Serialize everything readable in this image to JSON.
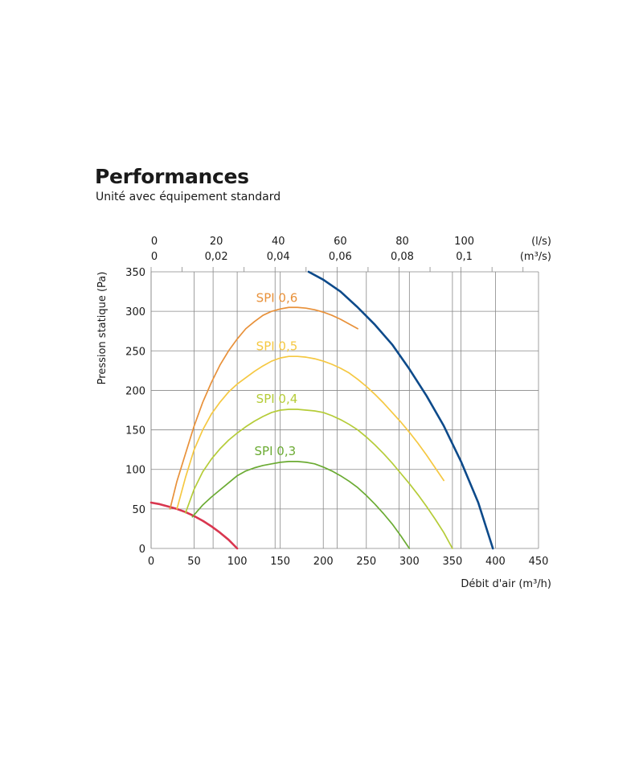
{
  "title": "Performances",
  "subtitle": "Unité avec équipement standard",
  "colors": {
    "spi06": "#e8913a",
    "spi05": "#f5c842",
    "spi04": "#b5cc38",
    "spi03": "#6bab33",
    "fan": "#0d4a8a",
    "red": "#d9364f",
    "grid": "#888888"
  },
  "chart_data": {
    "type": "line",
    "xlabel": "Débit d'air (m³/h)",
    "ylabel": "Pression statique (Pa)",
    "xlim": [
      0,
      450
    ],
    "ylim": [
      0,
      350
    ],
    "x_ticks": [
      "0",
      "50",
      "100",
      "150",
      "200",
      "250",
      "300",
      "350",
      "400",
      "450"
    ],
    "y_ticks": [
      "0",
      "50",
      "100",
      "150",
      "200",
      "250",
      "300",
      "350"
    ],
    "top_axis": {
      "ls_unit": "(l/s)",
      "m3s_unit": "(m³/s)",
      "ls_ticks": [
        {
          "value": 0,
          "label": "0"
        },
        {
          "value": 20,
          "label": "20"
        },
        {
          "value": 40,
          "label": "40"
        },
        {
          "value": 60,
          "label": "60"
        },
        {
          "value": 80,
          "label": "80"
        },
        {
          "value": 100,
          "label": "100"
        }
      ],
      "m3s_ticks": [
        {
          "value": 0,
          "label": "0"
        },
        {
          "value": 0.02,
          "label": "0,02"
        },
        {
          "value": 0.04,
          "label": "0,04"
        },
        {
          "value": 0.06,
          "label": "0,06"
        },
        {
          "value": 0.08,
          "label": "0,08"
        },
        {
          "value": 0.1,
          "label": "0,1"
        }
      ]
    },
    "series": [
      {
        "name": "SPI 0,6",
        "color": "#e8913a",
        "x": [
          22,
          30,
          40,
          50,
          60,
          70,
          80,
          90,
          100,
          110,
          120,
          130,
          140,
          150,
          160,
          170,
          180,
          190,
          200,
          210,
          220,
          230,
          240
        ],
        "y": [
          50,
          85,
          120,
          155,
          185,
          210,
          232,
          250,
          265,
          278,
          287,
          295,
          300,
          303,
          305,
          305,
          304,
          302,
          299,
          295,
          290,
          284,
          278
        ]
      },
      {
        "name": "SPI 0,5",
        "color": "#f5c842",
        "x": [
          30,
          40,
          50,
          60,
          70,
          80,
          90,
          100,
          110,
          120,
          130,
          140,
          150,
          160,
          170,
          180,
          190,
          200,
          210,
          220,
          230,
          240,
          250,
          260,
          270,
          280,
          290,
          300,
          310,
          320,
          330,
          340
        ],
        "y": [
          50,
          90,
          125,
          150,
          170,
          185,
          198,
          208,
          216,
          224,
          231,
          237,
          241,
          243,
          243,
          242,
          240,
          237,
          233,
          228,
          222,
          214,
          205,
          195,
          184,
          172,
          160,
          147,
          133,
          118,
          102,
          86
        ]
      },
      {
        "name": "SPI 0,4",
        "color": "#b5cc38",
        "x": [
          40,
          50,
          60,
          70,
          80,
          90,
          100,
          110,
          120,
          130,
          140,
          150,
          160,
          170,
          180,
          190,
          200,
          210,
          220,
          230,
          240,
          250,
          260,
          270,
          280,
          290,
          300,
          310,
          320,
          330,
          340,
          350
        ],
        "y": [
          45,
          75,
          97,
          113,
          126,
          137,
          146,
          154,
          161,
          167,
          172,
          175,
          176,
          176,
          175,
          174,
          172,
          168,
          163,
          157,
          150,
          141,
          131,
          120,
          108,
          95,
          82,
          68,
          53,
          37,
          20,
          0
        ]
      },
      {
        "name": "SPI 0,3",
        "color": "#6bab33",
        "x": [
          48,
          60,
          70,
          80,
          90,
          100,
          110,
          120,
          130,
          140,
          150,
          160,
          170,
          180,
          190,
          200,
          210,
          220,
          230,
          240,
          250,
          260,
          270,
          280,
          290,
          300
        ],
        "y": [
          40,
          55,
          65,
          74,
          83,
          92,
          98,
          102,
          105,
          107,
          109,
          110,
          110,
          109,
          107,
          103,
          98,
          92,
          85,
          77,
          67,
          56,
          44,
          31,
          16,
          0
        ]
      },
      {
        "name": "",
        "color": "#0d4a8a",
        "x": [
          183,
          200,
          220,
          240,
          260,
          280,
          300,
          320,
          340,
          360,
          380,
          397
        ],
        "y": [
          350,
          340,
          325,
          305,
          283,
          258,
          227,
          193,
          155,
          110,
          58,
          0
        ]
      },
      {
        "name": "",
        "color": "#d9364f",
        "x": [
          0,
          10,
          20,
          30,
          40,
          50,
          60,
          70,
          80,
          90,
          100
        ],
        "y": [
          58,
          56,
          53,
          50,
          46,
          41,
          35,
          28,
          20,
          11,
          0
        ]
      }
    ],
    "series_labels": [
      {
        "text": "SPI 0,6",
        "x": 122,
        "y": 312,
        "color": "#e8913a"
      },
      {
        "text": "SPI 0,5",
        "x": 122,
        "y": 251,
        "color": "#f5c842"
      },
      {
        "text": "SPI 0,4",
        "x": 122,
        "y": 184,
        "color": "#b5cc38"
      },
      {
        "text": "SPI 0,3",
        "x": 120,
        "y": 118,
        "color": "#6bab33"
      }
    ]
  }
}
